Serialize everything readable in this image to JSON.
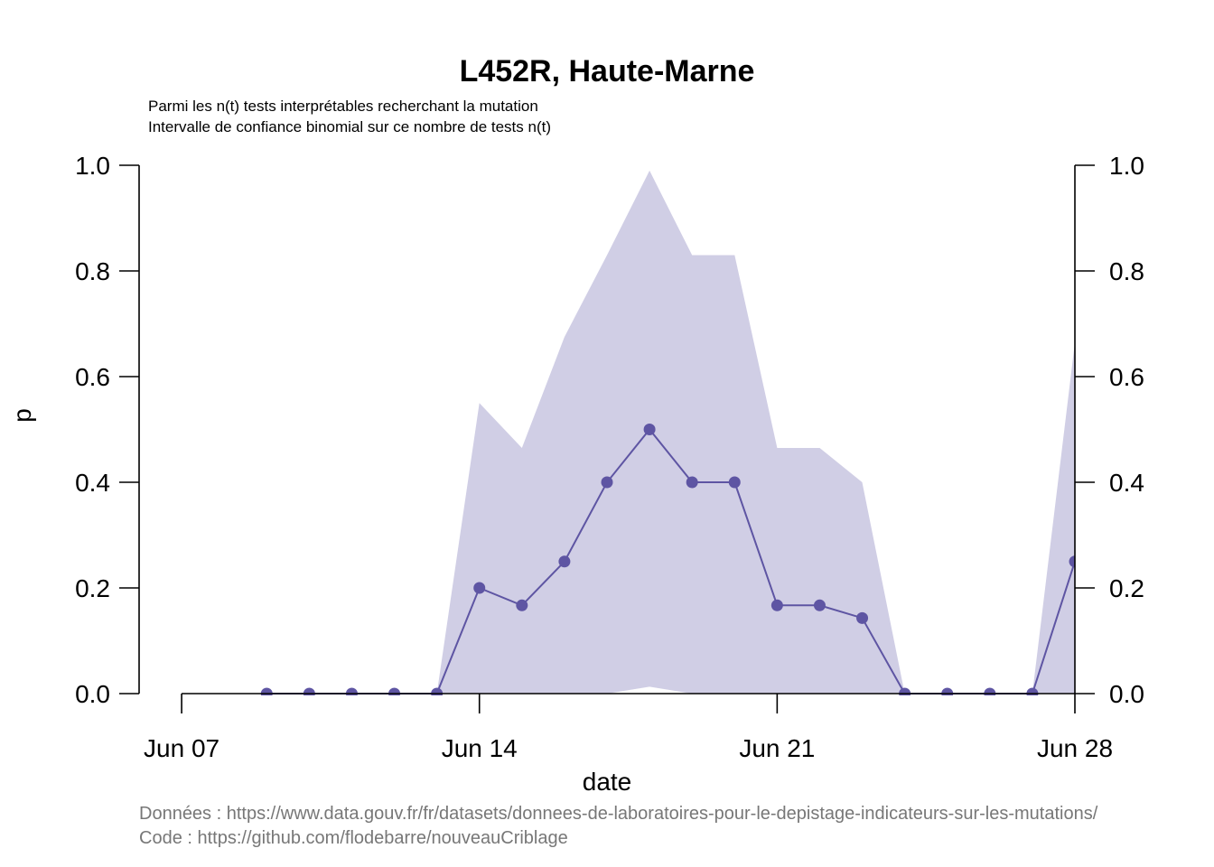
{
  "chart_data": {
    "type": "line",
    "title": "L452R, Haute-Marne",
    "subtitle_lines": [
      "Parmi les n(t) tests interprétables recherchant la mutation",
      "Intervalle de confiance binomial sur ce nombre de tests n(t)"
    ],
    "xlabel": "date",
    "ylabel": "p",
    "x_ticks": [
      {
        "day": 7,
        "label": "Jun 07"
      },
      {
        "day": 14,
        "label": "Jun 14"
      },
      {
        "day": 21,
        "label": "Jun 21"
      },
      {
        "day": 28,
        "label": "Jun 28"
      }
    ],
    "y_ticks": [
      "0.0",
      "0.2",
      "0.4",
      "0.6",
      "0.8",
      "1.0"
    ],
    "ylim": [
      0,
      1
    ],
    "xlim_days": [
      6,
      28
    ],
    "colors": {
      "line": "#5e55a3",
      "band": "#d0cee5",
      "axis": "#000000",
      "caption": "#777777"
    },
    "series": [
      {
        "days": [
          9,
          10,
          11,
          12,
          13,
          14,
          15,
          16,
          17,
          18,
          19,
          20,
          21,
          22,
          23,
          24,
          25,
          26,
          27,
          28
        ],
        "values": [
          0,
          0,
          0,
          0,
          0,
          0.2,
          0.167,
          0.25,
          0.4,
          0.5,
          0.4,
          0.4,
          0.167,
          0.167,
          0.143,
          0,
          0,
          0,
          0,
          0.25
        ]
      }
    ],
    "ci_band": {
      "days": [
        9,
        10,
        11,
        12,
        13,
        14,
        15,
        16,
        17,
        18,
        19,
        20,
        21,
        22,
        23,
        24,
        25,
        26,
        27,
        28
      ],
      "lower": [
        0,
        0,
        0,
        0,
        0,
        0,
        0,
        0,
        0,
        0.013,
        0,
        0,
        0,
        0,
        0,
        0,
        0,
        0,
        0,
        0
      ],
      "upper": [
        0,
        0,
        0,
        0,
        0,
        0.55,
        0.465,
        0.675,
        0.83,
        0.99,
        0.83,
        0.83,
        0.465,
        0.465,
        0.4,
        0,
        0,
        0,
        0,
        0.665
      ]
    }
  },
  "captions": [
    "Données : https://www.data.gouv.fr/fr/datasets/donnees-de-laboratoires-pour-le-depistage-indicateurs-sur-les-mutations/",
    "Code : https://github.com/flodebarre/nouveauCriblage"
  ]
}
